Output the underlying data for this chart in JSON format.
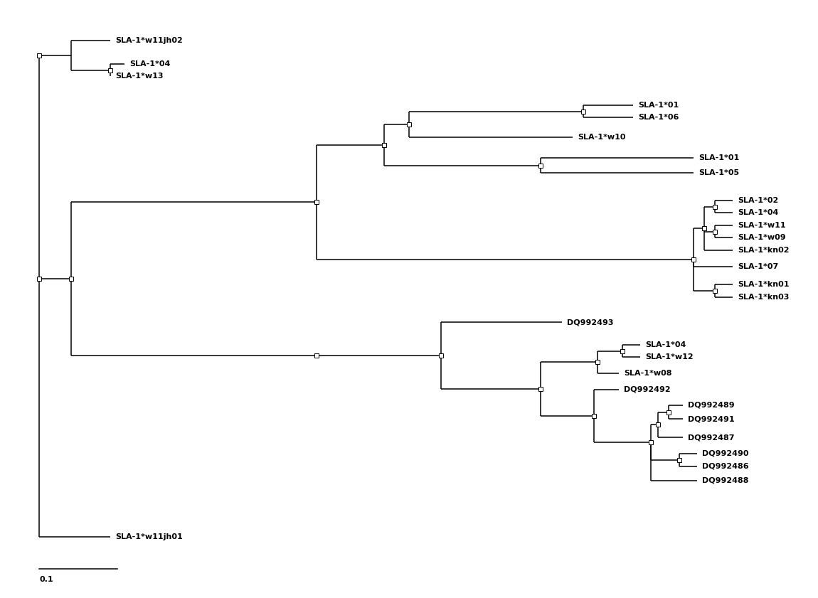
{
  "background_color": "#ffffff",
  "line_color": "#000000",
  "label_fontsize": 8,
  "label_font": "DejaVu Sans",
  "scale_bar_label": "0.1",
  "leaf_labels": {
    "SLA-1*w11jh02": "SLA-1*w11jh02",
    "SLA-1*04_top": "SLA-1*04",
    "SLA-1*w13": "SLA-1*w13",
    "SLA-1*01_a": "SLA-1*01",
    "SLA-1*06": "SLA-1*06",
    "SLA-1*w10": "SLA-1*w10",
    "SLA-1*01_b": "SLA-1*01",
    "SLA-1*05": "SLA-1*05",
    "SLA-1*02": "SLA-1*02",
    "SLA-1*04_mid": "SLA-1*04",
    "SLA-1*w11": "SLA-1*w11",
    "SLA-1*w09": "SLA-1*w09",
    "SLA-1*kn02": "SLA-1*kn02",
    "SLA-1*07": "SLA-1*07",
    "SLA-1*kn01": "SLA-1*kn01",
    "SLA-1*kn03": "SLA-1*kn03",
    "DQ992493": "DQ992493",
    "SLA-1*04_bot": "SLA-1*04",
    "SLA-1*w12": "SLA-1*w12",
    "SLA-1*w08": "SLA-1*w08",
    "DQ992492": "DQ992492",
    "DQ992489": "DQ992489",
    "DQ992491": "DQ992491",
    "DQ992487": "DQ992487",
    "DQ992490": "DQ992490",
    "DQ992486": "DQ992486",
    "DQ992488": "DQ992488",
    "SLA-1*w11jh01": "SLA-1*w11jh01"
  },
  "leaves_order": [
    "SLA-1*w11jh02",
    "SLA-1*04_top",
    "SLA-1*w13",
    "SLA-1*01_a",
    "SLA-1*06",
    "SLA-1*w10",
    "SLA-1*01_b",
    "SLA-1*05",
    "SLA-1*02",
    "SLA-1*04_mid",
    "SLA-1*w11",
    "SLA-1*w09",
    "SLA-1*kn02",
    "SLA-1*07",
    "SLA-1*kn01",
    "SLA-1*kn03",
    "DQ992493",
    "SLA-1*04_bot",
    "SLA-1*w12",
    "SLA-1*w08",
    "DQ992492",
    "DQ992489",
    "DQ992491",
    "DQ992487",
    "DQ992490",
    "DQ992486",
    "DQ992488",
    "SLA-1*w11jh01"
  ]
}
